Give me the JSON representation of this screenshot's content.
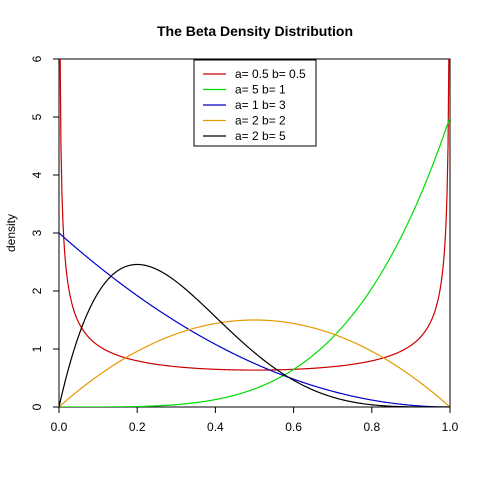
{
  "chart_data": {
    "type": "line",
    "title": "The Beta Density Distribution",
    "xlabel": "",
    "ylabel": "density",
    "xlim": [
      0,
      1
    ],
    "ylim": [
      0,
      6
    ],
    "x_ticks": [
      0,
      0.2,
      0.4,
      0.6,
      0.8,
      1
    ],
    "x_tick_labels": [
      "0.0",
      "0.2",
      "0.4",
      "0.6",
      "0.8",
      "1.0"
    ],
    "y_ticks": [
      0,
      1,
      2,
      3,
      4,
      5,
      6
    ],
    "y_tick_labels": [
      "0",
      "1",
      "2",
      "3",
      "4",
      "5",
      "6"
    ],
    "grid": false,
    "legend_position": "top-center",
    "series": [
      {
        "name": "a= 0.5  b= 0.5",
        "a": 0.5,
        "b": 0.5,
        "color": "#cc0000"
      },
      {
        "name": "a= 5  b= 1",
        "a": 5,
        "b": 1,
        "color": "#00dd00"
      },
      {
        "name": "a= 1  b= 3",
        "a": 1,
        "b": 3,
        "color": "#0000cc"
      },
      {
        "name": "a= 2  b= 2",
        "a": 2,
        "b": 2,
        "color": "#e69900"
      },
      {
        "name": "a= 2  b= 5",
        "a": 2,
        "b": 5,
        "color": "#000000"
      }
    ]
  }
}
